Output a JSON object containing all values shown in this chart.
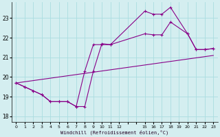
{
  "xlabel": "Windchill (Refroidissement éolien,°C)",
  "bg_color": "#d4eef0",
  "line_color": "#880088",
  "xlim": [
    -0.5,
    23.5
  ],
  "ylim": [
    17.7,
    23.8
  ],
  "yticks": [
    18,
    19,
    20,
    21,
    22,
    23
  ],
  "xtick_positions": [
    0,
    1,
    2,
    3,
    4,
    5,
    6,
    7,
    8,
    9,
    10,
    11,
    12,
    15,
    16,
    17,
    18,
    19,
    20,
    21,
    22,
    23
  ],
  "xtick_labels": [
    "0",
    "1",
    "2",
    "3",
    "4",
    "5",
    "6",
    "7",
    "8",
    "9",
    "1011",
    "12",
    "",
    "1516",
    "17",
    "18",
    "1920",
    "21",
    "2223",
    "",
    "",
    ""
  ],
  "grid_color": "#aadde0",
  "line1_x": [
    0,
    1,
    2,
    3,
    4,
    5,
    6,
    7,
    8,
    9,
    10,
    11,
    15,
    16,
    17,
    18,
    20,
    21,
    22,
    23
  ],
  "line1_y": [
    19.7,
    19.5,
    19.3,
    19.1,
    18.75,
    18.75,
    18.75,
    18.5,
    18.5,
    20.3,
    21.7,
    21.65,
    23.35,
    23.2,
    23.2,
    23.55,
    22.2,
    21.4,
    21.4,
    21.45
  ],
  "line2_x": [
    0,
    1,
    2,
    3,
    4,
    5,
    6,
    7,
    8,
    9,
    10,
    11,
    15,
    16,
    17,
    18,
    20,
    21,
    22,
    23
  ],
  "line2_y": [
    19.7,
    19.5,
    19.3,
    19.1,
    18.75,
    18.75,
    18.75,
    18.5,
    20.3,
    21.65,
    21.65,
    21.65,
    22.2,
    22.15,
    22.15,
    22.8,
    22.2,
    21.4,
    21.4,
    21.45
  ],
  "line3_x": [
    0,
    23
  ],
  "line3_y": [
    19.7,
    21.1
  ]
}
